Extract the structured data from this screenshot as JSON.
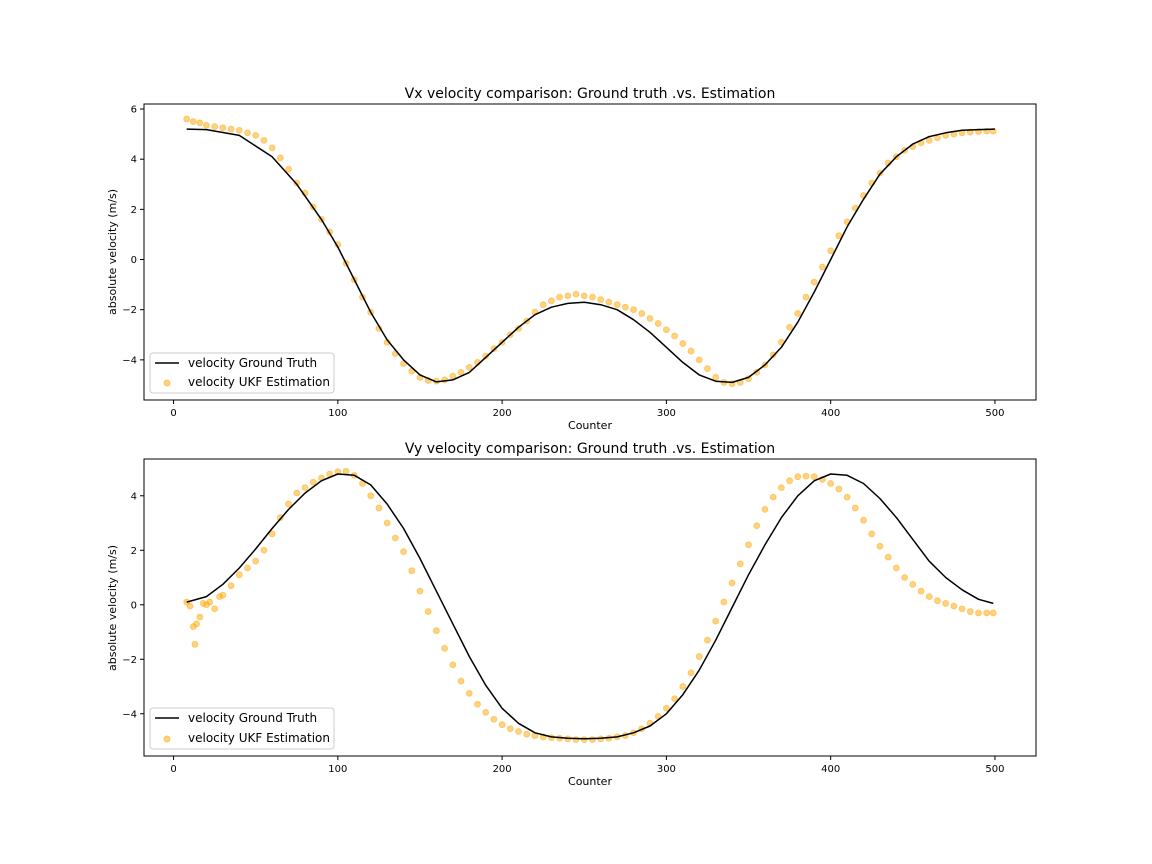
{
  "chart_data": [
    {
      "type": "line",
      "title": "Vx velocity comparison: Ground truth .vs. Estimation",
      "xlabel": "Counter",
      "ylabel": "absolute velocity (m/s)",
      "xlim": [
        -18,
        525
      ],
      "ylim": [
        -5.6,
        6.2
      ],
      "xticks": [
        0,
        100,
        200,
        300,
        400,
        500
      ],
      "yticks": [
        -4,
        -2,
        0,
        2,
        4,
        6
      ],
      "legend_position": "lower left",
      "grid": false,
      "series": [
        {
          "name": "velocity Ground Truth",
          "type": "line",
          "color": "#000000",
          "x": [
            8,
            20,
            40,
            60,
            75,
            90,
            100,
            110,
            120,
            130,
            140,
            150,
            160,
            170,
            180,
            190,
            200,
            210,
            220,
            230,
            240,
            250,
            260,
            270,
            280,
            290,
            300,
            310,
            320,
            330,
            340,
            350,
            360,
            370,
            380,
            390,
            400,
            410,
            420,
            430,
            440,
            450,
            460,
            470,
            480,
            490,
            500
          ],
          "y": [
            5.2,
            5.18,
            4.95,
            4.1,
            3.0,
            1.6,
            0.5,
            -0.8,
            -2.1,
            -3.2,
            -4.0,
            -4.6,
            -4.88,
            -4.8,
            -4.5,
            -3.9,
            -3.3,
            -2.7,
            -2.2,
            -1.9,
            -1.75,
            -1.7,
            -1.8,
            -2.0,
            -2.4,
            -2.9,
            -3.5,
            -4.1,
            -4.6,
            -4.85,
            -4.9,
            -4.7,
            -4.2,
            -3.5,
            -2.5,
            -1.3,
            0.0,
            1.3,
            2.4,
            3.4,
            4.1,
            4.6,
            4.9,
            5.05,
            5.15,
            5.18,
            5.2
          ]
        },
        {
          "name": "velocity UKF Estimation",
          "type": "scatter",
          "color": "#ffa500",
          "x": [
            8,
            12,
            16,
            20,
            25,
            30,
            35,
            40,
            45,
            50,
            55,
            60,
            65,
            70,
            75,
            80,
            85,
            90,
            95,
            100,
            105,
            110,
            115,
            120,
            125,
            130,
            135,
            140,
            145,
            150,
            155,
            160,
            165,
            170,
            175,
            180,
            185,
            190,
            195,
            200,
            205,
            210,
            215,
            220,
            225,
            230,
            235,
            240,
            245,
            250,
            255,
            260,
            265,
            270,
            275,
            280,
            285,
            290,
            295,
            300,
            305,
            310,
            315,
            320,
            325,
            330,
            335,
            340,
            345,
            350,
            355,
            360,
            365,
            370,
            375,
            380,
            385,
            390,
            395,
            400,
            405,
            410,
            415,
            420,
            425,
            430,
            435,
            440,
            445,
            450,
            455,
            460,
            465,
            470,
            475,
            480,
            485,
            490,
            495,
            499
          ],
          "y": [
            5.6,
            5.5,
            5.45,
            5.35,
            5.3,
            5.25,
            5.2,
            5.15,
            5.05,
            4.95,
            4.75,
            4.45,
            4.05,
            3.6,
            3.05,
            2.65,
            2.1,
            1.6,
            1.1,
            0.6,
            -0.15,
            -0.8,
            -1.5,
            -2.1,
            -2.75,
            -3.3,
            -3.75,
            -4.15,
            -4.45,
            -4.7,
            -4.82,
            -4.85,
            -4.8,
            -4.65,
            -4.5,
            -4.3,
            -4.1,
            -3.85,
            -3.55,
            -3.3,
            -3.0,
            -2.75,
            -2.45,
            -2.1,
            -1.8,
            -1.65,
            -1.5,
            -1.45,
            -1.38,
            -1.45,
            -1.5,
            -1.6,
            -1.7,
            -1.8,
            -1.9,
            -2.0,
            -2.15,
            -2.35,
            -2.55,
            -2.8,
            -3.05,
            -3.35,
            -3.65,
            -4.0,
            -4.35,
            -4.7,
            -4.9,
            -4.95,
            -4.9,
            -4.75,
            -4.5,
            -4.2,
            -3.8,
            -3.3,
            -2.7,
            -2.15,
            -1.5,
            -0.9,
            -0.3,
            0.35,
            0.95,
            1.5,
            2.05,
            2.55,
            3.05,
            3.45,
            3.85,
            4.1,
            4.35,
            4.5,
            4.65,
            4.75,
            4.85,
            4.95,
            5.0,
            5.05,
            5.08,
            5.1,
            5.12,
            5.12
          ]
        }
      ]
    },
    {
      "type": "line",
      "title": "Vy velocity comparison: Ground truth .vs. Estimation",
      "xlabel": "Counter",
      "ylabel": "absolute velocity (m/s)",
      "xlim": [
        -18,
        525
      ],
      "ylim": [
        -5.55,
        5.35
      ],
      "xticks": [
        0,
        100,
        200,
        300,
        400,
        500
      ],
      "yticks": [
        -4,
        -2,
        0,
        2,
        4
      ],
      "legend_position": "lower left",
      "grid": false,
      "series": [
        {
          "name": "velocity Ground Truth",
          "type": "line",
          "color": "#000000",
          "x": [
            8,
            20,
            30,
            40,
            50,
            60,
            70,
            80,
            90,
            100,
            110,
            120,
            130,
            140,
            150,
            160,
            170,
            180,
            190,
            200,
            210,
            220,
            230,
            240,
            250,
            260,
            270,
            280,
            290,
            300,
            310,
            320,
            330,
            340,
            350,
            360,
            370,
            380,
            390,
            400,
            410,
            420,
            430,
            440,
            450,
            460,
            470,
            480,
            490,
            499
          ],
          "y": [
            0.1,
            0.3,
            0.75,
            1.35,
            2.05,
            2.8,
            3.5,
            4.1,
            4.55,
            4.8,
            4.75,
            4.4,
            3.7,
            2.8,
            1.7,
            0.5,
            -0.7,
            -1.9,
            -2.95,
            -3.8,
            -4.35,
            -4.7,
            -4.85,
            -4.9,
            -4.92,
            -4.9,
            -4.85,
            -4.7,
            -4.45,
            -4.0,
            -3.3,
            -2.4,
            -1.3,
            -0.1,
            1.1,
            2.2,
            3.2,
            4.0,
            4.55,
            4.8,
            4.75,
            4.45,
            3.9,
            3.2,
            2.4,
            1.6,
            1.0,
            0.55,
            0.2,
            0.05
          ]
        },
        {
          "name": "velocity UKF Estimation",
          "type": "scatter",
          "color": "#ffa500",
          "x": [
            8,
            10,
            12,
            13,
            14,
            16,
            18,
            20,
            22,
            25,
            28,
            30,
            35,
            40,
            45,
            50,
            55,
            60,
            65,
            70,
            75,
            80,
            85,
            90,
            95,
            100,
            105,
            110,
            115,
            120,
            125,
            130,
            135,
            140,
            145,
            150,
            155,
            160,
            165,
            170,
            175,
            180,
            185,
            190,
            195,
            200,
            205,
            210,
            215,
            220,
            225,
            230,
            235,
            240,
            245,
            250,
            255,
            260,
            265,
            270,
            275,
            280,
            285,
            290,
            295,
            300,
            305,
            310,
            315,
            320,
            325,
            330,
            335,
            340,
            345,
            350,
            355,
            360,
            365,
            370,
            375,
            380,
            385,
            390,
            395,
            400,
            405,
            410,
            415,
            420,
            425,
            430,
            435,
            440,
            445,
            450,
            455,
            460,
            465,
            470,
            475,
            480,
            485,
            490,
            495,
            499
          ],
          "y": [
            0.1,
            -0.05,
            -0.8,
            -1.45,
            -0.7,
            -0.45,
            0.05,
            0.0,
            0.1,
            -0.15,
            0.3,
            0.35,
            0.7,
            1.1,
            1.35,
            1.6,
            2.0,
            2.6,
            3.2,
            3.7,
            4.1,
            4.3,
            4.5,
            4.65,
            4.8,
            4.88,
            4.9,
            4.75,
            4.45,
            4.0,
            3.55,
            3.0,
            2.45,
            1.95,
            1.25,
            0.5,
            -0.25,
            -0.95,
            -1.6,
            -2.2,
            -2.8,
            -3.25,
            -3.65,
            -3.95,
            -4.2,
            -4.4,
            -4.55,
            -4.65,
            -4.75,
            -4.8,
            -4.85,
            -4.88,
            -4.9,
            -4.92,
            -4.95,
            -4.95,
            -4.95,
            -4.92,
            -4.9,
            -4.85,
            -4.8,
            -4.7,
            -4.55,
            -4.35,
            -4.1,
            -3.8,
            -3.45,
            -3.0,
            -2.5,
            -1.9,
            -1.3,
            -0.6,
            0.1,
            0.8,
            1.5,
            2.2,
            2.9,
            3.5,
            3.95,
            4.3,
            4.55,
            4.7,
            4.72,
            4.7,
            4.6,
            4.45,
            4.25,
            3.95,
            3.55,
            3.1,
            2.6,
            2.15,
            1.75,
            1.35,
            1.0,
            0.75,
            0.5,
            0.3,
            0.15,
            0.05,
            -0.05,
            -0.15,
            -0.25,
            -0.3,
            -0.3,
            -0.3
          ]
        }
      ]
    }
  ]
}
